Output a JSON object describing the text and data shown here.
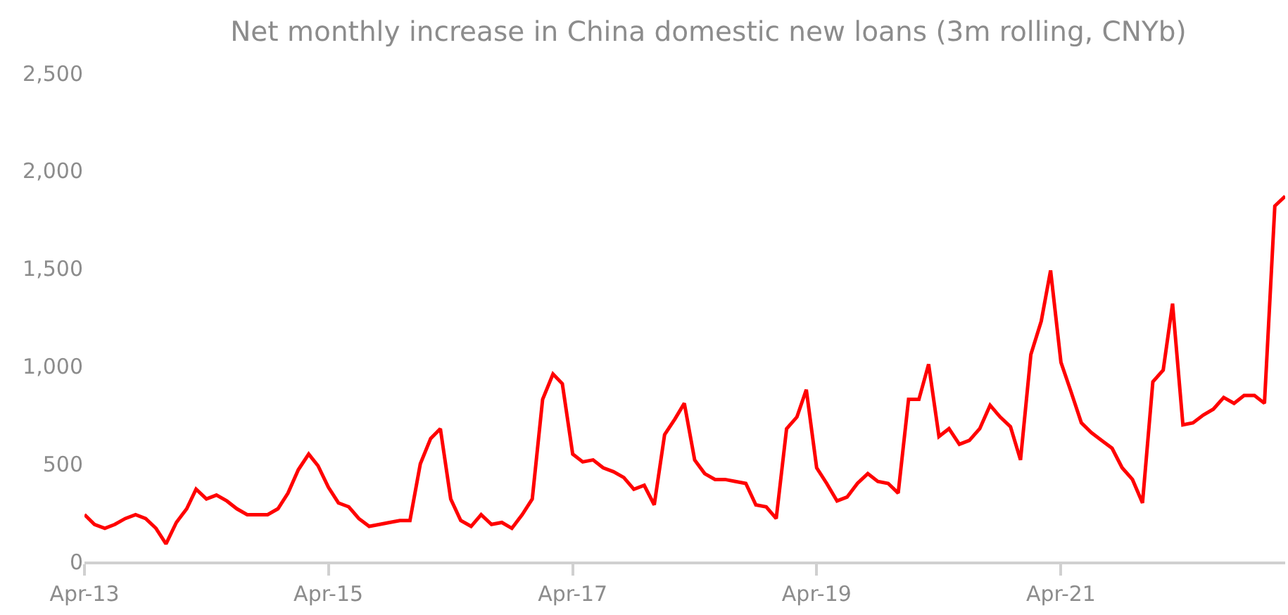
{
  "chart_data": {
    "type": "line",
    "title": "Net monthly increase in China domestic new loans (3m rolling, CNYb)",
    "x": [
      "2013-04",
      "2013-05",
      "2013-06",
      "2013-07",
      "2013-08",
      "2013-09",
      "2013-10",
      "2013-11",
      "2013-12",
      "2014-01",
      "2014-02",
      "2014-03",
      "2014-04",
      "2014-05",
      "2014-06",
      "2014-07",
      "2014-08",
      "2014-09",
      "2014-10",
      "2014-11",
      "2014-12",
      "2015-01",
      "2015-02",
      "2015-03",
      "2015-04",
      "2015-05",
      "2015-06",
      "2015-07",
      "2015-08",
      "2015-09",
      "2015-10",
      "2015-11",
      "2015-12",
      "2016-01",
      "2016-02",
      "2016-03",
      "2016-04",
      "2016-05",
      "2016-06",
      "2016-07",
      "2016-08",
      "2016-09",
      "2016-10",
      "2016-11",
      "2016-12",
      "2017-01",
      "2017-02",
      "2017-03",
      "2017-04",
      "2017-05",
      "2017-06",
      "2017-07",
      "2017-08",
      "2017-09",
      "2017-10",
      "2017-11",
      "2017-12",
      "2018-01",
      "2018-02",
      "2018-03",
      "2018-04",
      "2018-05",
      "2018-06",
      "2018-07",
      "2018-08",
      "2018-09",
      "2018-10",
      "2018-11",
      "2018-12",
      "2019-01",
      "2019-02",
      "2019-03",
      "2019-04",
      "2019-05",
      "2019-06",
      "2019-07",
      "2019-08",
      "2019-09",
      "2019-10",
      "2019-11",
      "2019-12",
      "2020-01",
      "2020-02",
      "2020-03",
      "2020-04",
      "2020-05",
      "2020-06",
      "2020-07",
      "2020-08",
      "2020-09",
      "2020-10",
      "2020-11",
      "2020-12",
      "2021-01",
      "2021-02",
      "2021-03",
      "2021-04",
      "2021-05",
      "2021-06",
      "2021-07",
      "2021-08",
      "2021-09",
      "2021-10",
      "2021-11",
      "2021-12",
      "2022-01",
      "2022-02",
      "2022-03",
      "2022-04",
      "2022-05",
      "2022-06",
      "2022-07",
      "2022-08",
      "2022-09",
      "2022-10",
      "2022-11",
      "2022-12",
      "2023-01",
      "2023-02"
    ],
    "series": [
      {
        "color": "#ff0000",
        "values": [
          240,
          190,
          170,
          190,
          220,
          240,
          220,
          170,
          90,
          200,
          270,
          370,
          320,
          340,
          310,
          270,
          240,
          240,
          240,
          270,
          350,
          470,
          550,
          490,
          380,
          300,
          280,
          220,
          180,
          190,
          200,
          210,
          210,
          500,
          630,
          680,
          320,
          210,
          180,
          240,
          190,
          200,
          170,
          240,
          320,
          830,
          960,
          910,
          550,
          510,
          520,
          480,
          460,
          430,
          370,
          390,
          290,
          650,
          730,
          810,
          520,
          450,
          420,
          420,
          410,
          400,
          290,
          280,
          220,
          680,
          740,
          880,
          480,
          400,
          310,
          330,
          400,
          450,
          410,
          400,
          350,
          830,
          830,
          1010,
          640,
          680,
          600,
          620,
          680,
          800,
          740,
          690,
          520,
          1060,
          1230,
          1490,
          1020,
          870,
          710,
          660,
          620,
          580,
          480,
          420,
          300,
          920,
          980,
          1320,
          700,
          710,
          750,
          780,
          840,
          810,
          850,
          850,
          810,
          1820,
          1870
        ]
      }
    ],
    "xlim": [
      "2013-04",
      "2023-02"
    ],
    "xticks": [
      {
        "value": "2013-04",
        "label": "Apr-13"
      },
      {
        "value": "2015-04",
        "label": "Apr-15"
      },
      {
        "value": "2017-04",
        "label": "Apr-17"
      },
      {
        "value": "2019-04",
        "label": "Apr-19"
      },
      {
        "value": "2021-04",
        "label": "Apr-21"
      }
    ],
    "ylim": [
      0,
      2500
    ],
    "yticks": [
      {
        "value": 0,
        "label": "0"
      },
      {
        "value": 500,
        "label": "500"
      },
      {
        "value": 1000,
        "label": "1,000"
      },
      {
        "value": 1500,
        "label": "1,500"
      },
      {
        "value": 2000,
        "label": "2,000"
      },
      {
        "value": 2500,
        "label": "2,500"
      }
    ],
    "marker": "none",
    "line_style": "solid"
  }
}
